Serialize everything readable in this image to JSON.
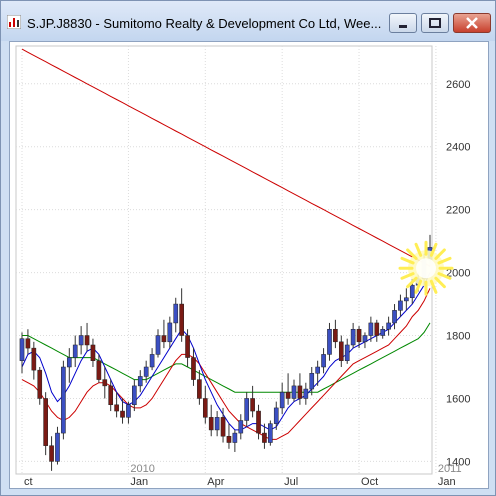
{
  "window": {
    "title": "S.JP.J8830 - Sumitomo Realty & Development Co Ltd, Wee...",
    "colors": {
      "titlebar": "#cfdff3",
      "close": "#c7402d"
    }
  },
  "chart_data": {
    "type": "candlestick",
    "title": "S.JP.J8830 - Sumitomo Realty & Development Co Ltd, Wee...",
    "ylim": [
      1360,
      2720
    ],
    "yticks": [
      1400,
      1600,
      1800,
      2000,
      2200,
      2400,
      2600
    ],
    "x_labels": [
      "ct",
      "2010",
      "Jan",
      "Apr",
      "Jul",
      "Oct",
      "2011",
      "Jan"
    ],
    "x_label_weeks": [
      0,
      18,
      18,
      31,
      44,
      57,
      70,
      70
    ],
    "grid": true,
    "colors": {
      "up": "#1f2f9a",
      "down": "#7a1a14",
      "ma_fast": "#0000cc",
      "ma_mid": "#cc0000",
      "ma_slow": "#008800",
      "ma_long": "#cc0000",
      "highlight": "#ffee55"
    },
    "candles": [
      [
        1720,
        1810,
        1680,
        1790
      ],
      [
        1790,
        1820,
        1740,
        1760
      ],
      [
        1760,
        1780,
        1660,
        1690
      ],
      [
        1690,
        1700,
        1580,
        1600
      ],
      [
        1600,
        1620,
        1420,
        1450
      ],
      [
        1450,
        1480,
        1370,
        1400
      ],
      [
        1400,
        1510,
        1390,
        1490
      ],
      [
        1490,
        1720,
        1470,
        1700
      ],
      [
        1700,
        1760,
        1650,
        1730
      ],
      [
        1730,
        1800,
        1700,
        1770
      ],
      [
        1770,
        1830,
        1740,
        1800
      ],
      [
        1800,
        1840,
        1750,
        1770
      ],
      [
        1770,
        1790,
        1700,
        1720
      ],
      [
        1720,
        1740,
        1650,
        1660
      ],
      [
        1660,
        1700,
        1600,
        1640
      ],
      [
        1640,
        1660,
        1560,
        1580
      ],
      [
        1580,
        1620,
        1540,
        1560
      ],
      [
        1560,
        1600,
        1520,
        1540
      ],
      [
        1540,
        1590,
        1520,
        1580
      ],
      [
        1580,
        1660,
        1560,
        1640
      ],
      [
        1640,
        1690,
        1620,
        1670
      ],
      [
        1670,
        1720,
        1650,
        1700
      ],
      [
        1700,
        1760,
        1690,
        1740
      ],
      [
        1740,
        1820,
        1730,
        1800
      ],
      [
        1800,
        1850,
        1760,
        1780
      ],
      [
        1780,
        1860,
        1760,
        1840
      ],
      [
        1840,
        1920,
        1810,
        1900
      ],
      [
        1900,
        1950,
        1780,
        1800
      ],
      [
        1800,
        1820,
        1700,
        1730
      ],
      [
        1730,
        1760,
        1640,
        1660
      ],
      [
        1660,
        1690,
        1580,
        1600
      ],
      [
        1600,
        1640,
        1520,
        1540
      ],
      [
        1540,
        1580,
        1480,
        1500
      ],
      [
        1500,
        1560,
        1480,
        1540
      ],
      [
        1540,
        1570,
        1460,
        1480
      ],
      [
        1480,
        1520,
        1440,
        1460
      ],
      [
        1460,
        1500,
        1430,
        1490
      ],
      [
        1490,
        1550,
        1470,
        1530
      ],
      [
        1530,
        1620,
        1510,
        1600
      ],
      [
        1600,
        1640,
        1540,
        1560
      ],
      [
        1560,
        1580,
        1470,
        1490
      ],
      [
        1490,
        1520,
        1440,
        1460
      ],
      [
        1460,
        1530,
        1450,
        1520
      ],
      [
        1520,
        1590,
        1500,
        1570
      ],
      [
        1570,
        1650,
        1550,
        1620
      ],
      [
        1620,
        1680,
        1580,
        1600
      ],
      [
        1600,
        1660,
        1590,
        1640
      ],
      [
        1640,
        1680,
        1580,
        1600
      ],
      [
        1600,
        1650,
        1580,
        1630
      ],
      [
        1630,
        1700,
        1610,
        1680
      ],
      [
        1680,
        1720,
        1640,
        1700
      ],
      [
        1700,
        1760,
        1680,
        1740
      ],
      [
        1740,
        1840,
        1720,
        1820
      ],
      [
        1820,
        1850,
        1760,
        1780
      ],
      [
        1780,
        1800,
        1700,
        1720
      ],
      [
        1720,
        1790,
        1710,
        1770
      ],
      [
        1770,
        1840,
        1760,
        1820
      ],
      [
        1820,
        1830,
        1760,
        1780
      ],
      [
        1780,
        1810,
        1760,
        1800
      ],
      [
        1800,
        1860,
        1780,
        1840
      ],
      [
        1840,
        1850,
        1780,
        1800
      ],
      [
        1800,
        1830,
        1790,
        1820
      ],
      [
        1820,
        1860,
        1800,
        1840
      ],
      [
        1840,
        1900,
        1820,
        1880
      ],
      [
        1880,
        1930,
        1860,
        1910
      ],
      [
        1910,
        1950,
        1880,
        1920
      ],
      [
        1920,
        1980,
        1900,
        1960
      ],
      [
        1960,
        2000,
        1940,
        1980
      ],
      [
        1980,
        2060,
        1960,
        2040
      ],
      [
        2040,
        2120,
        2020,
        2080
      ]
    ],
    "ma_fast": [
      1700,
      1740,
      1750,
      1730,
      1680,
      1620,
      1590,
      1610,
      1640,
      1680,
      1720,
      1750,
      1760,
      1740,
      1700,
      1660,
      1620,
      1590,
      1580,
      1590,
      1610,
      1640,
      1670,
      1700,
      1730,
      1760,
      1790,
      1820,
      1800,
      1760,
      1710,
      1660,
      1620,
      1580,
      1550,
      1520,
      1500,
      1500,
      1510,
      1520,
      1520,
      1510,
      1500,
      1510,
      1540,
      1570,
      1590,
      1600,
      1610,
      1630,
      1650,
      1670,
      1700,
      1720,
      1730,
      1740,
      1760,
      1770,
      1780,
      1790,
      1800,
      1810,
      1820,
      1840,
      1860,
      1880,
      1900,
      1930,
      1960,
      2000
    ],
    "ma_mid": [
      1660,
      1650,
      1640,
      1620,
      1590,
      1560,
      1540,
      1530,
      1540,
      1560,
      1590,
      1620,
      1640,
      1650,
      1650,
      1640,
      1620,
      1600,
      1580,
      1570,
      1570,
      1580,
      1600,
      1630,
      1660,
      1690,
      1720,
      1740,
      1740,
      1730,
      1710,
      1680,
      1650,
      1620,
      1590,
      1560,
      1540,
      1520,
      1510,
      1500,
      1490,
      1480,
      1470,
      1470,
      1480,
      1490,
      1510,
      1530,
      1550,
      1570,
      1590,
      1610,
      1630,
      1650,
      1670,
      1690,
      1710,
      1720,
      1730,
      1740,
      1750,
      1760,
      1770,
      1790,
      1810,
      1830,
      1860,
      1880,
      1910,
      1950
    ],
    "ma_slow": [
      1800,
      1800,
      1790,
      1780,
      1770,
      1760,
      1750,
      1740,
      1730,
      1730,
      1730,
      1730,
      1730,
      1720,
      1710,
      1700,
      1690,
      1680,
      1670,
      1660,
      1660,
      1660,
      1670,
      1680,
      1690,
      1700,
      1710,
      1710,
      1700,
      1690,
      1680,
      1670,
      1660,
      1650,
      1640,
      1630,
      1620,
      1620,
      1620,
      1620,
      1620,
      1620,
      1620,
      1620,
      1620,
      1620,
      1620,
      1620,
      1620,
      1620,
      1620,
      1630,
      1640,
      1650,
      1660,
      1670,
      1680,
      1690,
      1700,
      1710,
      1720,
      1730,
      1740,
      1750,
      1760,
      1770,
      1780,
      1790,
      1810,
      1840
    ],
    "ma_long": [
      2710,
      2700,
      2690,
      2680,
      2670,
      2660,
      2650,
      2640,
      2630,
      2620,
      2610,
      2600,
      2590,
      2580,
      2570,
      2560,
      2550,
      2540,
      2530,
      2520,
      2510,
      2500,
      2490,
      2480,
      2470,
      2460,
      2450,
      2440,
      2430,
      2420,
      2410,
      2400,
      2390,
      2380,
      2370,
      2360,
      2350,
      2340,
      2330,
      2320,
      2310,
      2300,
      2290,
      2280,
      2270,
      2260,
      2250,
      2240,
      2230,
      2220,
      2210,
      2200,
      2190,
      2180,
      2170,
      2160,
      2150,
      2140,
      2130,
      2120,
      2110,
      2100,
      2090,
      2080,
      2070,
      2060,
      2050,
      2040,
      2030,
      2020
    ]
  }
}
